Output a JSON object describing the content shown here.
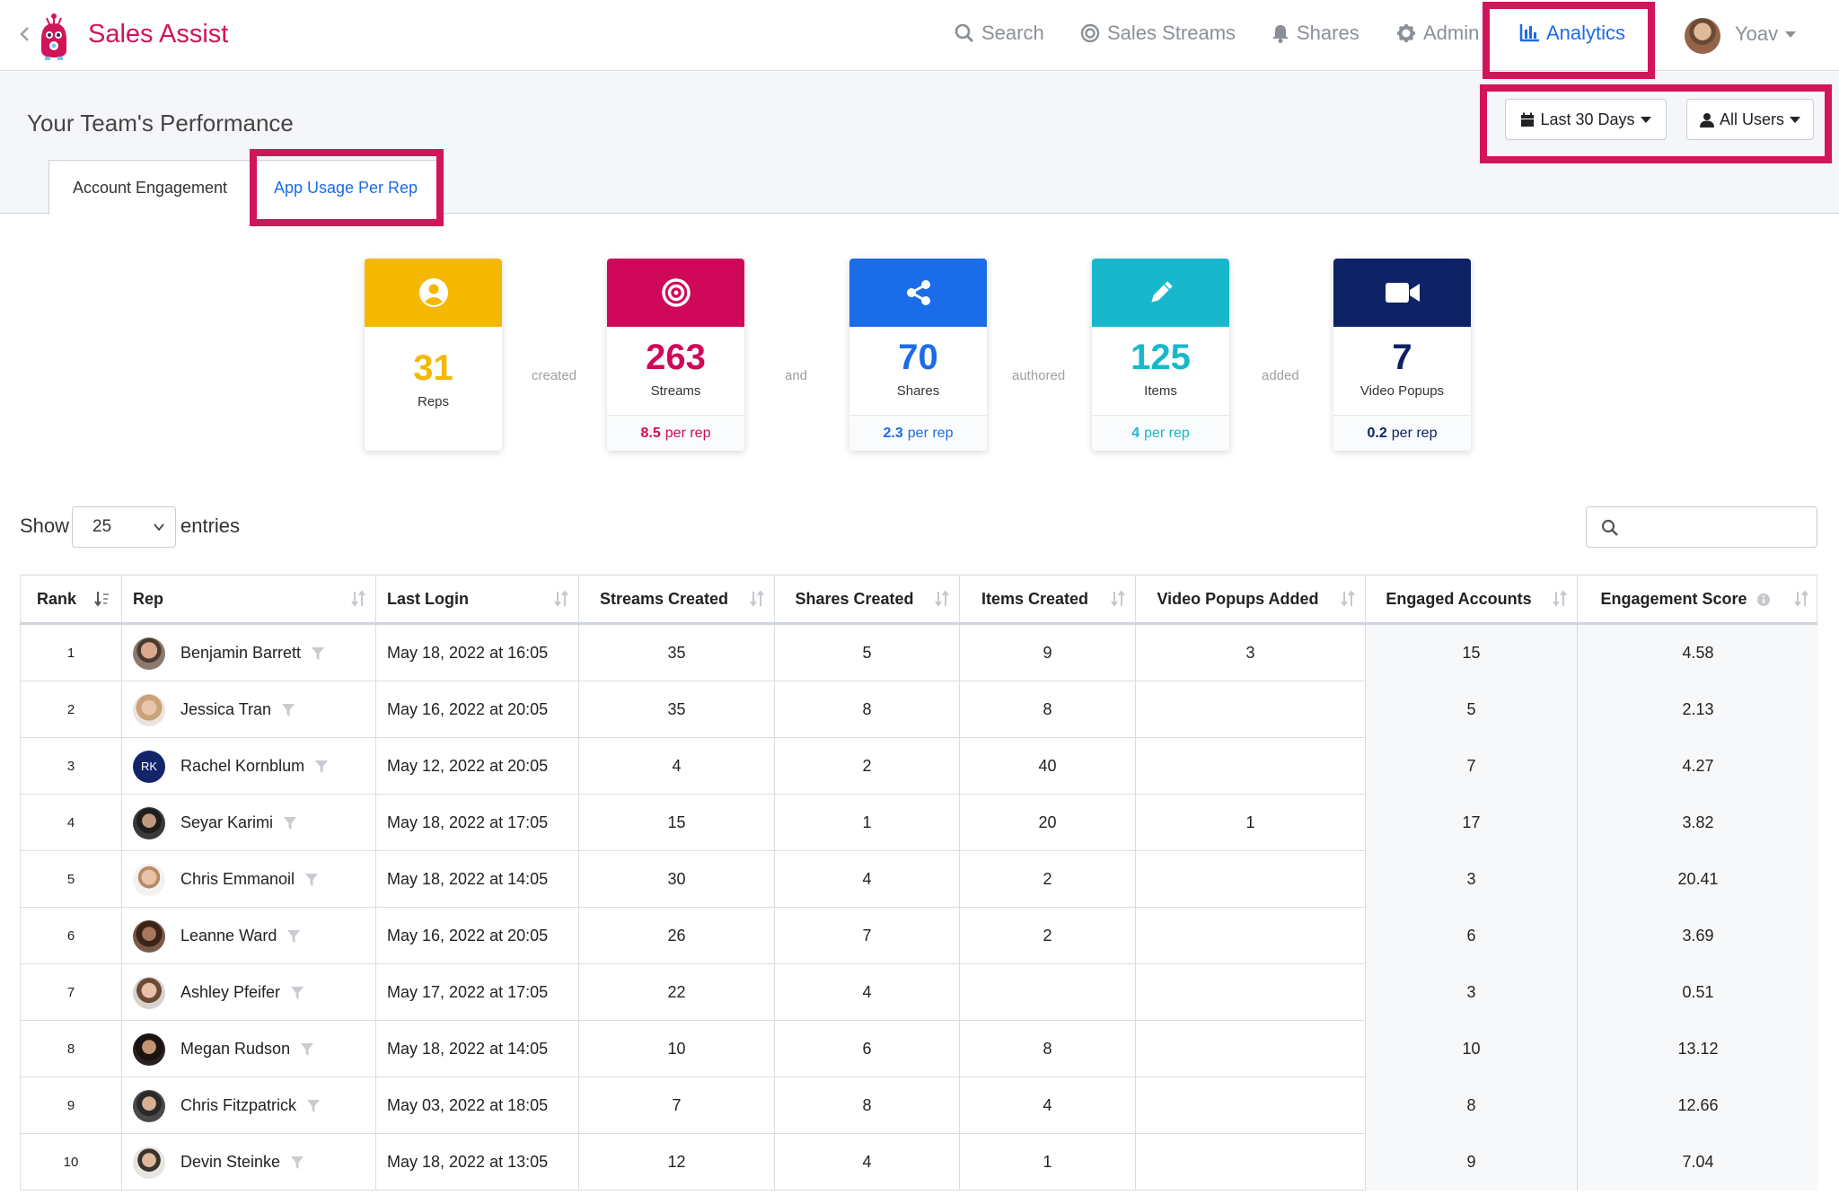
{
  "header": {
    "brand": "Sales Assist",
    "nav": [
      {
        "label": "Search",
        "icon": "search-icon"
      },
      {
        "label": "Sales Streams",
        "icon": "target-icon"
      },
      {
        "label": "Shares",
        "icon": "bell-icon"
      },
      {
        "label": "Admin",
        "icon": "gear-icon"
      },
      {
        "label": "Analytics",
        "icon": "bar-chart-icon"
      }
    ],
    "user": "Yoav"
  },
  "performance": {
    "title": "Your Team's Performance",
    "date_range": "Last 30 Days",
    "user_filter": "All Users",
    "tabs": [
      "Account Engagement",
      "App Usage Per Rep"
    ]
  },
  "metrics": {
    "reps": {
      "value": "31",
      "label": "Reps",
      "color": "#f5b800"
    },
    "streams": {
      "value": "263",
      "label": "Streams",
      "per_rep": "8.5",
      "per_rep_text": "per rep",
      "color": "#d0085a"
    },
    "shares": {
      "value": "70",
      "label": "Shares",
      "per_rep": "2.3",
      "per_rep_text": "per rep",
      "color": "#1a6ce8"
    },
    "items": {
      "value": "125",
      "label": "Items",
      "per_rep": "4",
      "per_rep_text": "per rep",
      "color": "#17b8cc"
    },
    "videos": {
      "value": "7",
      "label": "Video Popups",
      "per_rep": "0.2",
      "per_rep_text": "per rep",
      "color": "#0e2266"
    },
    "connectors": [
      "created",
      "and",
      "authored",
      "added"
    ]
  },
  "table_controls": {
    "show_label": "Show",
    "entries_value": "25",
    "entries_label": "entries",
    "search_placeholder": ""
  },
  "table": {
    "columns": [
      "Rank",
      "Rep",
      "Last Login",
      "Streams Created",
      "Shares Created",
      "Items Created",
      "Video Popups Added",
      "Engaged Accounts",
      "Engagement Score"
    ],
    "rows": [
      {
        "rank": "1",
        "rep": "Benjamin Barrett",
        "login": "May 18, 2022 at 16:05",
        "streams": "35",
        "shares": "5",
        "items": "9",
        "videos": "3",
        "accounts": "15",
        "score": "4.58"
      },
      {
        "rank": "2",
        "rep": "Jessica Tran",
        "login": "May 16, 2022 at 20:05",
        "streams": "35",
        "shares": "8",
        "items": "8",
        "videos": "",
        "accounts": "5",
        "score": "2.13"
      },
      {
        "rank": "3",
        "rep": "Rachel Kornblum",
        "initials": "RK",
        "login": "May 12, 2022 at 20:05",
        "streams": "4",
        "shares": "2",
        "items": "40",
        "videos": "",
        "accounts": "7",
        "score": "4.27"
      },
      {
        "rank": "4",
        "rep": "Seyar Karimi",
        "login": "May 18, 2022 at 17:05",
        "streams": "15",
        "shares": "1",
        "items": "20",
        "videos": "1",
        "accounts": "17",
        "score": "3.82"
      },
      {
        "rank": "5",
        "rep": "Chris Emmanoil",
        "login": "May 18, 2022 at 14:05",
        "streams": "30",
        "shares": "4",
        "items": "2",
        "videos": "",
        "accounts": "3",
        "score": "20.41"
      },
      {
        "rank": "6",
        "rep": "Leanne Ward",
        "login": "May 16, 2022 at 20:05",
        "streams": "26",
        "shares": "7",
        "items": "2",
        "videos": "",
        "accounts": "6",
        "score": "3.69"
      },
      {
        "rank": "7",
        "rep": "Ashley Pfeifer",
        "login": "May 17, 2022 at 17:05",
        "streams": "22",
        "shares": "4",
        "items": "",
        "videos": "",
        "accounts": "3",
        "score": "0.51"
      },
      {
        "rank": "8",
        "rep": "Megan Rudson",
        "login": "May 18, 2022 at 14:05",
        "streams": "10",
        "shares": "6",
        "items": "8",
        "videos": "",
        "accounts": "10",
        "score": "13.12"
      },
      {
        "rank": "9",
        "rep": "Chris Fitzpatrick",
        "login": "May 03, 2022 at 18:05",
        "streams": "7",
        "shares": "8",
        "items": "4",
        "videos": "",
        "accounts": "8",
        "score": "12.66"
      },
      {
        "rank": "10",
        "rep": "Devin Steinke",
        "login": "May 18, 2022 at 13:05",
        "streams": "12",
        "shares": "4",
        "items": "1",
        "videos": "",
        "accounts": "9",
        "score": "7.04"
      }
    ]
  },
  "colors": {
    "accent": "#d2145a",
    "link": "#1a6ce8"
  }
}
